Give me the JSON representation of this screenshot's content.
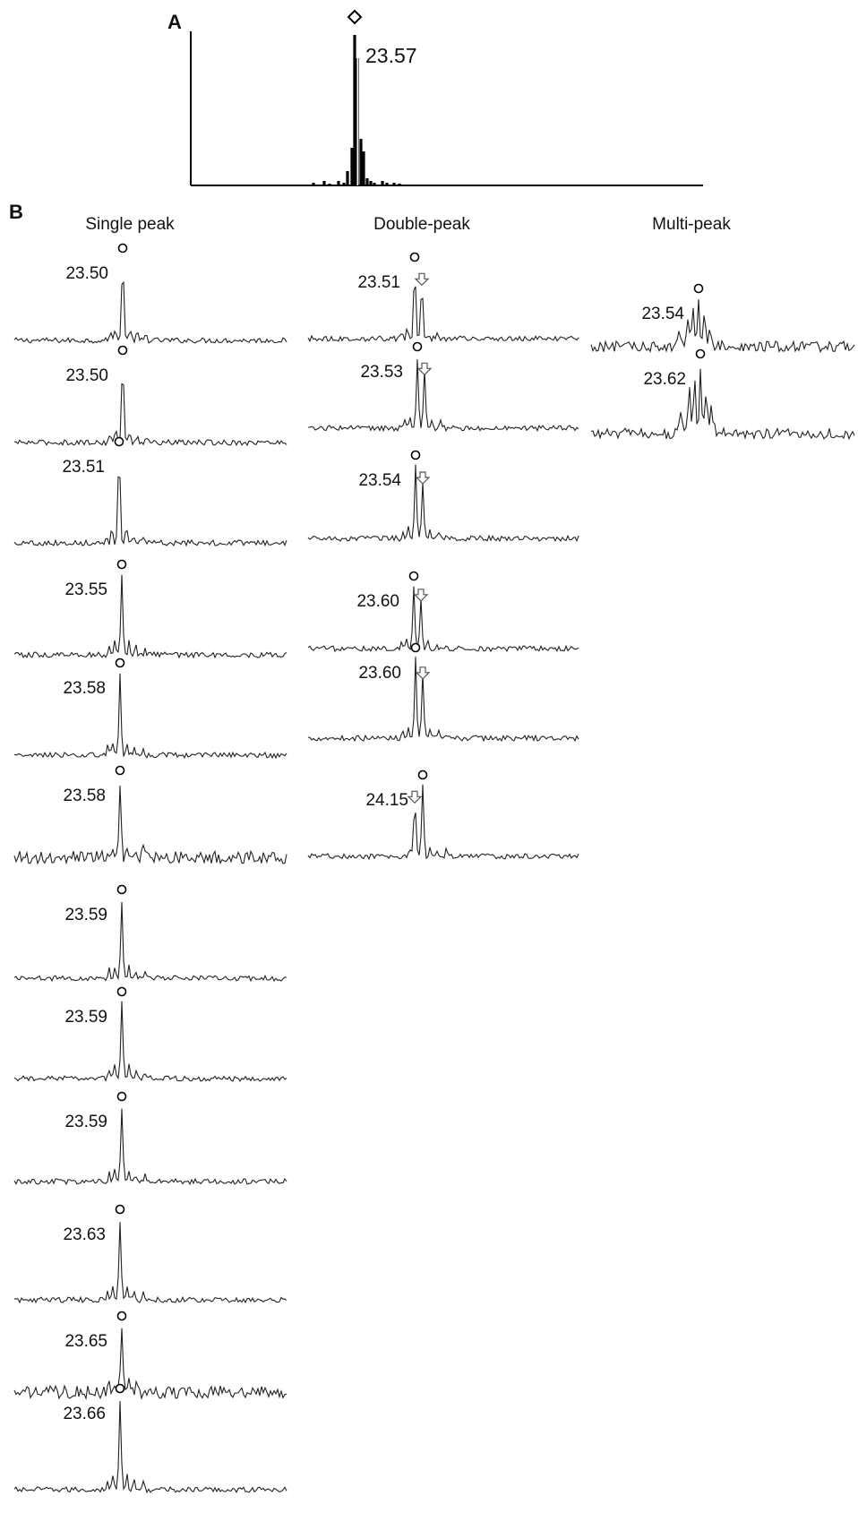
{
  "panel_a": {
    "label": "A",
    "peak_label": "23.57"
  },
  "panel_b": {
    "label": "B",
    "columns": [
      {
        "title": "Single peak",
        "traces": [
          "23.50",
          "23.50",
          "23.51",
          "23.55",
          "23.58",
          "23.58",
          "23.59",
          "23.59",
          "23.59",
          "23.63",
          "23.65",
          "23.66"
        ]
      },
      {
        "title": "Double-peak",
        "traces": [
          "23.51",
          "23.53",
          "23.54",
          "23.60",
          "23.60",
          "24.15"
        ]
      },
      {
        "title": "Multi-peak",
        "traces": [
          "23.54",
          "23.62"
        ]
      }
    ]
  },
  "chart_data": [
    {
      "type": "bar",
      "panel": "A",
      "peak_value": 23.57,
      "annotations": [
        "23.57"
      ],
      "marker": "open diamond above main peak"
    },
    {
      "type": "line",
      "panel": "B",
      "groups": [
        {
          "name": "Single peak",
          "peak_values": [
            23.5,
            23.5,
            23.51,
            23.55,
            23.58,
            23.58,
            23.59,
            23.59,
            23.59,
            23.63,
            23.65,
            23.66
          ]
        },
        {
          "name": "Double-peak",
          "peak_values": [
            23.51,
            23.53,
            23.54,
            23.6,
            23.6,
            24.15
          ]
        },
        {
          "name": "Multi-peak",
          "peak_values": [
            23.54,
            23.62
          ]
        }
      ]
    }
  ]
}
